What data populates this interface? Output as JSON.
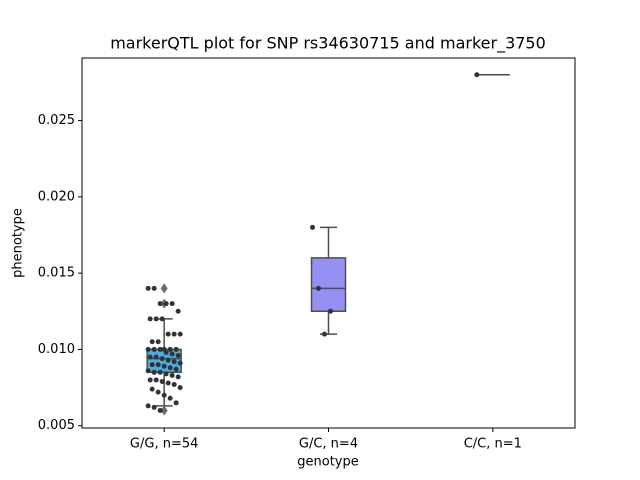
{
  "chart_data": {
    "type": "box",
    "title": "markerQTL plot for SNP rs34630715 and marker_3750",
    "x_label": "genotype",
    "y_label": "phenotype",
    "categories": [
      "G/G, n=54",
      "G/C, n=4",
      "C/C, n=1"
    ],
    "colors": [
      "#4aaee3",
      "#9590f4",
      "#7d6be8"
    ],
    "ylim": [
      0.00485,
      0.0291
    ],
    "yticks": [
      0.005,
      {
        "value": 0.01,
        "label": "0.010"
      },
      0.015,
      {
        "value": 0.02,
        "label": "0.020"
      },
      0.025
    ],
    "boxes": [
      {
        "whislo": 0.0063,
        "q1": 0.0085,
        "med": 0.0094,
        "q3": 0.01,
        "whishi": 0.012,
        "fliers": [
          0.014,
          0.013,
          0.006
        ]
      },
      {
        "whislo": 0.011,
        "q1": 0.0125,
        "med": 0.014,
        "q3": 0.016,
        "whishi": 0.018,
        "fliers": []
      },
      {
        "whislo": 0.028,
        "q1": 0.028,
        "med": 0.028,
        "q3": 0.028,
        "whishi": 0.028,
        "fliers": []
      }
    ],
    "points": [
      [
        0.014,
        0.014,
        0.013,
        0.013,
        0.013,
        0.0125,
        0.012,
        0.012,
        0.012,
        0.011,
        0.011,
        0.011,
        0.0105,
        0.0105,
        0.01,
        0.01,
        0.01,
        0.01,
        0.01,
        0.01,
        0.0098,
        0.0097,
        0.0096,
        0.0095,
        0.0095,
        0.0094,
        0.0093,
        0.0092,
        0.0091,
        0.009,
        0.009,
        0.0089,
        0.0088,
        0.0087,
        0.0086,
        0.0085,
        0.0085,
        0.0084,
        0.0083,
        0.0082,
        0.008,
        0.008,
        0.0079,
        0.0078,
        0.0077,
        0.0075,
        0.0074,
        0.0072,
        0.007,
        0.0068,
        0.0065,
        0.0063,
        0.0062,
        0.006
      ],
      [
        0.018,
        0.014,
        0.011,
        0.0125
      ],
      [
        0.028
      ]
    ]
  }
}
